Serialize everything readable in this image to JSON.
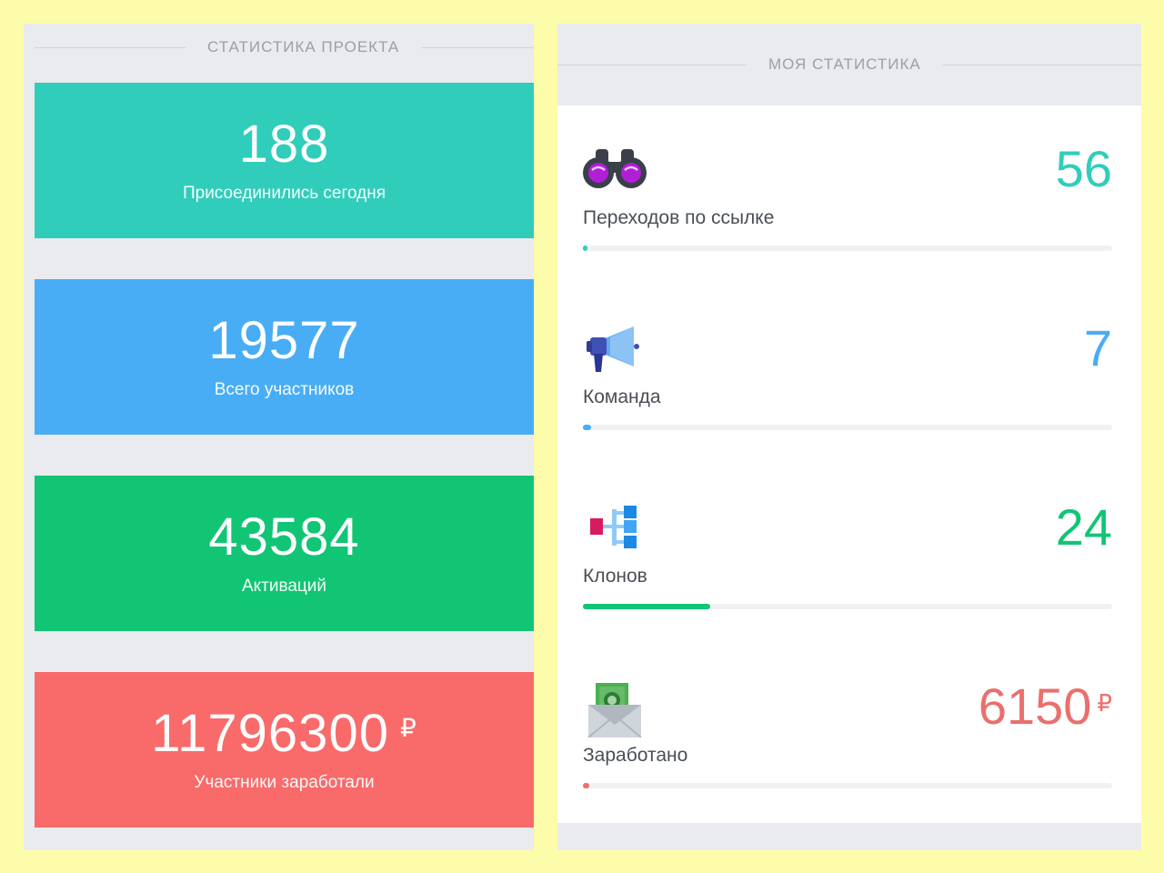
{
  "project_stats": {
    "header": "СТАТИСТИКА ПРОЕКТА",
    "cards": [
      {
        "value": "188",
        "label": "Присоединились сегодня",
        "color": "#31cdbb"
      },
      {
        "value": "19577",
        "label": "Всего участников",
        "color": "#48adf5"
      },
      {
        "value": "43584",
        "label": "Активаций",
        "color": "#11c575"
      },
      {
        "value": "11796300",
        "currency": "₽",
        "label": "Участники заработали",
        "color": "#f86b6a"
      }
    ]
  },
  "my_stats": {
    "header": "МОЯ СТАТИСТИКА",
    "metrics": [
      {
        "icon": "binoculars-icon",
        "value": "56",
        "label": "Переходов по ссылке",
        "progress": 0.005,
        "color": "#31cdbb"
      },
      {
        "icon": "megaphone-icon",
        "value": "7",
        "label": "Команда",
        "progress": 0.015,
        "color": "#48adf5"
      },
      {
        "icon": "hierarchy-icon",
        "value": "24",
        "label": "Клонов",
        "progress": 0.24,
        "color": "#11c575"
      },
      {
        "icon": "money-envelope-icon",
        "value": "6150",
        "currency": "₽",
        "label": "Заработано",
        "progress": 0.012,
        "color": "#e9706d"
      }
    ]
  }
}
